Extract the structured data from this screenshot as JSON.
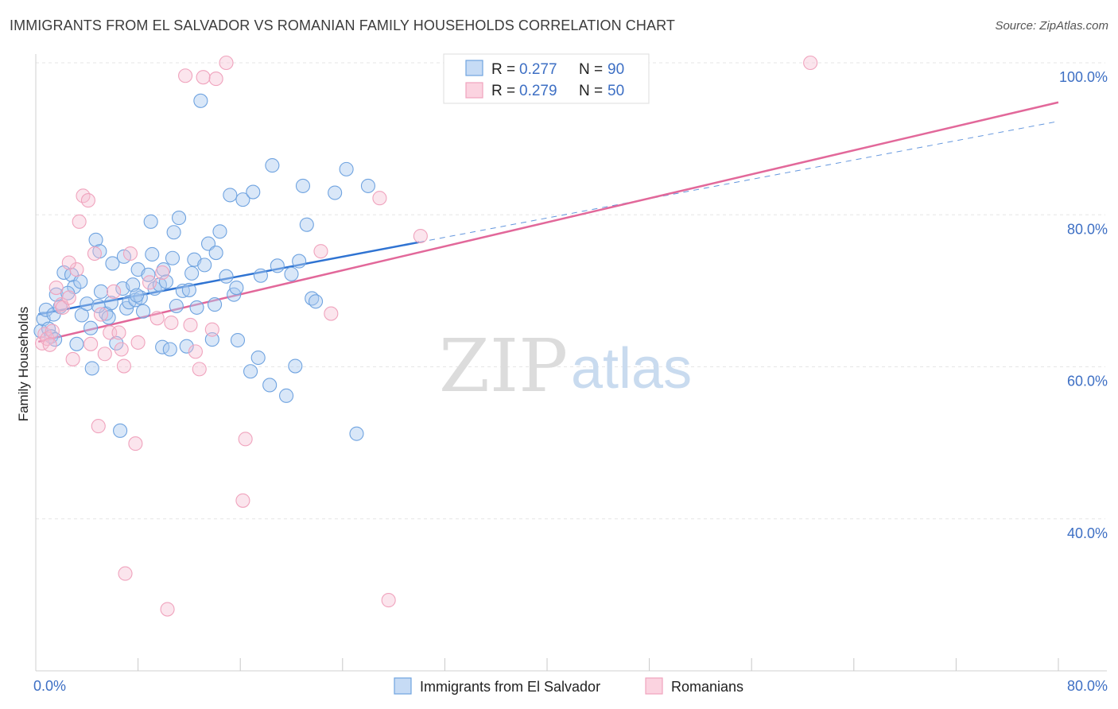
{
  "title": "IMMIGRANTS FROM EL SALVADOR VS ROMANIAN FAMILY HOUSEHOLDS CORRELATION CHART",
  "source": "Source: ZipAtlas.com",
  "watermark": {
    "zip": "ZIP",
    "atlas": "atlas"
  },
  "colors": {
    "blue": "#6fa3e0",
    "blue_line": "#2f73d2",
    "pink": "#f0a3bd",
    "pink_line": "#e2689a",
    "tick": "#3d6fc4"
  },
  "chart_data": {
    "type": "scatter",
    "title": "IMMIGRANTS FROM EL SALVADOR VS ROMANIAN FAMILY HOUSEHOLDS CORRELATION CHART",
    "xlabel": "",
    "ylabel": "Family Households",
    "xlim": [
      0,
      80
    ],
    "ylim": [
      20,
      100
    ],
    "x_tick_labels": [
      {
        "value": 0,
        "label": "0.0%"
      },
      {
        "value": 80,
        "label": "80.0%"
      }
    ],
    "y_tick_labels": [
      {
        "value": 100,
        "label": "100.0%"
      },
      {
        "value": 80,
        "label": "80.0%"
      },
      {
        "value": 60,
        "label": "60.0%"
      },
      {
        "value": 40,
        "label": "40.0%"
      }
    ],
    "legend": [
      {
        "name": "Immigrants from El Salvador",
        "r_label": "R =",
        "r": "0.277",
        "n_label": "N =",
        "n": "90"
      },
      {
        "name": "Romanians",
        "r_label": "R =",
        "r": "0.279",
        "n_label": "N =",
        "n": "50"
      }
    ],
    "series": [
      {
        "name": "Immigrants from El Salvador",
        "color": "#6fa3e0",
        "trend": {
          "x0": 0.2,
          "y0": 66.9,
          "x1": 30.0,
          "y1": 76.4,
          "dash_to_x": 80.0,
          "dash_to_y": 92.3
        },
        "points": [
          [
            0.4,
            64.7
          ],
          [
            0.6,
            66.3
          ],
          [
            0.8,
            67.5
          ],
          [
            1.0,
            65.0
          ],
          [
            1.2,
            64.0
          ],
          [
            1.4,
            66.9
          ],
          [
            1.6,
            69.5
          ],
          [
            1.9,
            67.9
          ],
          [
            2.2,
            72.4
          ],
          [
            2.8,
            72.1
          ],
          [
            3.0,
            70.5
          ],
          [
            3.2,
            63.0
          ],
          [
            3.6,
            66.8
          ],
          [
            4.0,
            68.3
          ],
          [
            4.3,
            65.1
          ],
          [
            4.4,
            59.8
          ],
          [
            4.7,
            76.7
          ],
          [
            5.0,
            75.2
          ],
          [
            5.1,
            69.9
          ],
          [
            5.5,
            67.0
          ],
          [
            5.7,
            66.5
          ],
          [
            5.9,
            68.4
          ],
          [
            6.0,
            73.6
          ],
          [
            6.3,
            63.1
          ],
          [
            6.6,
            51.6
          ],
          [
            6.8,
            70.3
          ],
          [
            6.9,
            74.5
          ],
          [
            7.1,
            67.7
          ],
          [
            7.3,
            68.5
          ],
          [
            7.6,
            70.8
          ],
          [
            7.8,
            68.8
          ],
          [
            8.0,
            72.8
          ],
          [
            8.2,
            69.1
          ],
          [
            8.4,
            67.3
          ],
          [
            8.8,
            72.1
          ],
          [
            9.0,
            79.1
          ],
          [
            9.1,
            74.8
          ],
          [
            9.3,
            70.3
          ],
          [
            9.7,
            70.8
          ],
          [
            9.9,
            62.6
          ],
          [
            10.0,
            72.8
          ],
          [
            10.2,
            71.2
          ],
          [
            10.5,
            62.3
          ],
          [
            10.7,
            74.3
          ],
          [
            10.8,
            77.7
          ],
          [
            11.2,
            79.6
          ],
          [
            11.5,
            70.0
          ],
          [
            11.8,
            62.7
          ],
          [
            12.0,
            70.1
          ],
          [
            12.4,
            74.1
          ],
          [
            12.6,
            67.8
          ],
          [
            12.9,
            95.0
          ],
          [
            13.2,
            73.4
          ],
          [
            13.5,
            76.2
          ],
          [
            13.8,
            63.6
          ],
          [
            14.0,
            68.2
          ],
          [
            14.1,
            75.0
          ],
          [
            14.4,
            77.8
          ],
          [
            14.9,
            71.9
          ],
          [
            15.2,
            82.6
          ],
          [
            15.5,
            69.5
          ],
          [
            15.8,
            63.5
          ],
          [
            16.2,
            82.0
          ],
          [
            16.8,
            59.4
          ],
          [
            17.0,
            83.0
          ],
          [
            17.4,
            61.2
          ],
          [
            17.6,
            72.0
          ],
          [
            18.3,
            57.6
          ],
          [
            18.5,
            86.5
          ],
          [
            18.9,
            73.3
          ],
          [
            19.6,
            56.2
          ],
          [
            20.0,
            72.2
          ],
          [
            20.3,
            60.1
          ],
          [
            20.6,
            73.9
          ],
          [
            20.9,
            83.8
          ],
          [
            21.2,
            78.7
          ],
          [
            21.6,
            69.0
          ],
          [
            21.9,
            68.6
          ],
          [
            23.4,
            82.9
          ],
          [
            24.3,
            86.0
          ],
          [
            25.1,
            51.2
          ],
          [
            26.0,
            83.8
          ],
          [
            1.5,
            63.6
          ],
          [
            2.5,
            69.7
          ],
          [
            3.5,
            71.2
          ],
          [
            7.9,
            69.4
          ],
          [
            12.2,
            72.3
          ],
          [
            15.7,
            70.4
          ],
          [
            11.0,
            68.0
          ],
          [
            4.9,
            68.0
          ]
        ]
      },
      {
        "name": "Romanians",
        "color": "#f0a3bd",
        "trend": {
          "x0": 0.2,
          "y0": 63.3,
          "x1": 80.0,
          "y1": 94.8
        },
        "points": [
          [
            0.5,
            63.1
          ],
          [
            0.7,
            64.3
          ],
          [
            0.9,
            63.7
          ],
          [
            1.1,
            62.9
          ],
          [
            1.3,
            64.7
          ],
          [
            1.6,
            70.4
          ],
          [
            2.0,
            68.2
          ],
          [
            2.1,
            67.8
          ],
          [
            2.6,
            69.1
          ],
          [
            2.9,
            61.0
          ],
          [
            3.2,
            72.8
          ],
          [
            3.4,
            79.1
          ],
          [
            3.7,
            82.5
          ],
          [
            4.1,
            81.9
          ],
          [
            4.3,
            63.0
          ],
          [
            4.6,
            74.9
          ],
          [
            4.9,
            52.2
          ],
          [
            5.1,
            66.9
          ],
          [
            5.4,
            61.7
          ],
          [
            5.8,
            64.5
          ],
          [
            6.1,
            69.9
          ],
          [
            6.5,
            64.5
          ],
          [
            6.7,
            62.3
          ],
          [
            6.9,
            60.1
          ],
          [
            7.0,
            32.8
          ],
          [
            7.4,
            74.9
          ],
          [
            7.8,
            49.9
          ],
          [
            8.0,
            63.2
          ],
          [
            8.9,
            71.1
          ],
          [
            9.5,
            66.4
          ],
          [
            9.9,
            72.4
          ],
          [
            10.3,
            28.1
          ],
          [
            10.6,
            65.8
          ],
          [
            11.7,
            98.3
          ],
          [
            12.1,
            65.5
          ],
          [
            12.5,
            62.0
          ],
          [
            12.8,
            59.7
          ],
          [
            13.1,
            98.1
          ],
          [
            13.8,
            64.9
          ],
          [
            14.1,
            97.9
          ],
          [
            14.9,
            100.0
          ],
          [
            16.2,
            42.4
          ],
          [
            16.4,
            50.5
          ],
          [
            22.3,
            75.2
          ],
          [
            23.1,
            67.0
          ],
          [
            26.9,
            82.2
          ],
          [
            27.6,
            29.3
          ],
          [
            30.1,
            77.2
          ],
          [
            60.6,
            100.0
          ],
          [
            2.6,
            73.7
          ]
        ]
      }
    ]
  }
}
